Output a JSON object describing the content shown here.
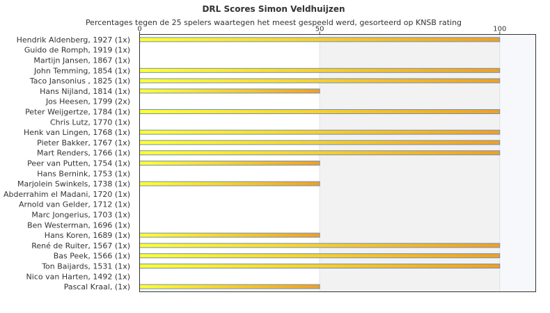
{
  "chart_data": {
    "type": "bar",
    "orientation": "horizontal",
    "title": "DRL Scores Simon Veldhuijzen",
    "subtitle": "Percentages tegen de 25 spelers waartegen het meest gespeeld werd, gesorteerd op KNSB rating",
    "categories": [
      "Hendrik Aldenberg, 1927 (1x)",
      "Guido de Romph, 1919 (1x)",
      "Martijn Jansen, 1867 (1x)",
      "John Temming, 1854 (1x)",
      "Taco Jansonius , 1825 (1x)",
      "Hans Nijland, 1814 (1x)",
      "Jos Heesen, 1799 (2x)",
      "Peter Weijgertze, 1784 (1x)",
      "Chris Lutz, 1770 (1x)",
      "Henk van Lingen, 1768 (1x)",
      "Pieter Bakker, 1767 (1x)",
      "Mart Renders, 1766 (1x)",
      "Peer van Putten, 1754 (1x)",
      "Hans Bernink, 1753 (1x)",
      "Marjolein Swinkels, 1738 (1x)",
      "Abderrahim el Madani, 1720 (1x)",
      "Arnold van Gelder, 1712 (1x)",
      "Marc Jongerius, 1703 (1x)",
      "Ben Westerman, 1696 (1x)",
      "Hans Koren, 1689 (1x)",
      "René de Ruiter, 1567 (1x)",
      "Bas Peek, 1566 (1x)",
      "Ton Baijards, 1531 (1x)",
      "Nico van Harten, 1492 (1x)",
      "Pascal Kraal,  (1x)"
    ],
    "values": [
      100,
      0,
      0,
      100,
      100,
      50,
      0,
      100,
      0,
      100,
      100,
      100,
      50,
      0,
      50,
      0,
      0,
      0,
      0,
      50,
      100,
      100,
      100,
      0,
      50
    ],
    "xlim": [
      0,
      110
    ],
    "xticks": [
      0,
      50,
      100
    ],
    "tick_labels": [
      "0",
      "50",
      "100"
    ],
    "grid": true,
    "band_colors": [
      "#ffffff",
      "#f2f2f2",
      "#f7f8fc"
    ],
    "bar_gradient": [
      "#ffff33",
      "#f0a020"
    ],
    "bar_border": "#6e8fbf"
  }
}
